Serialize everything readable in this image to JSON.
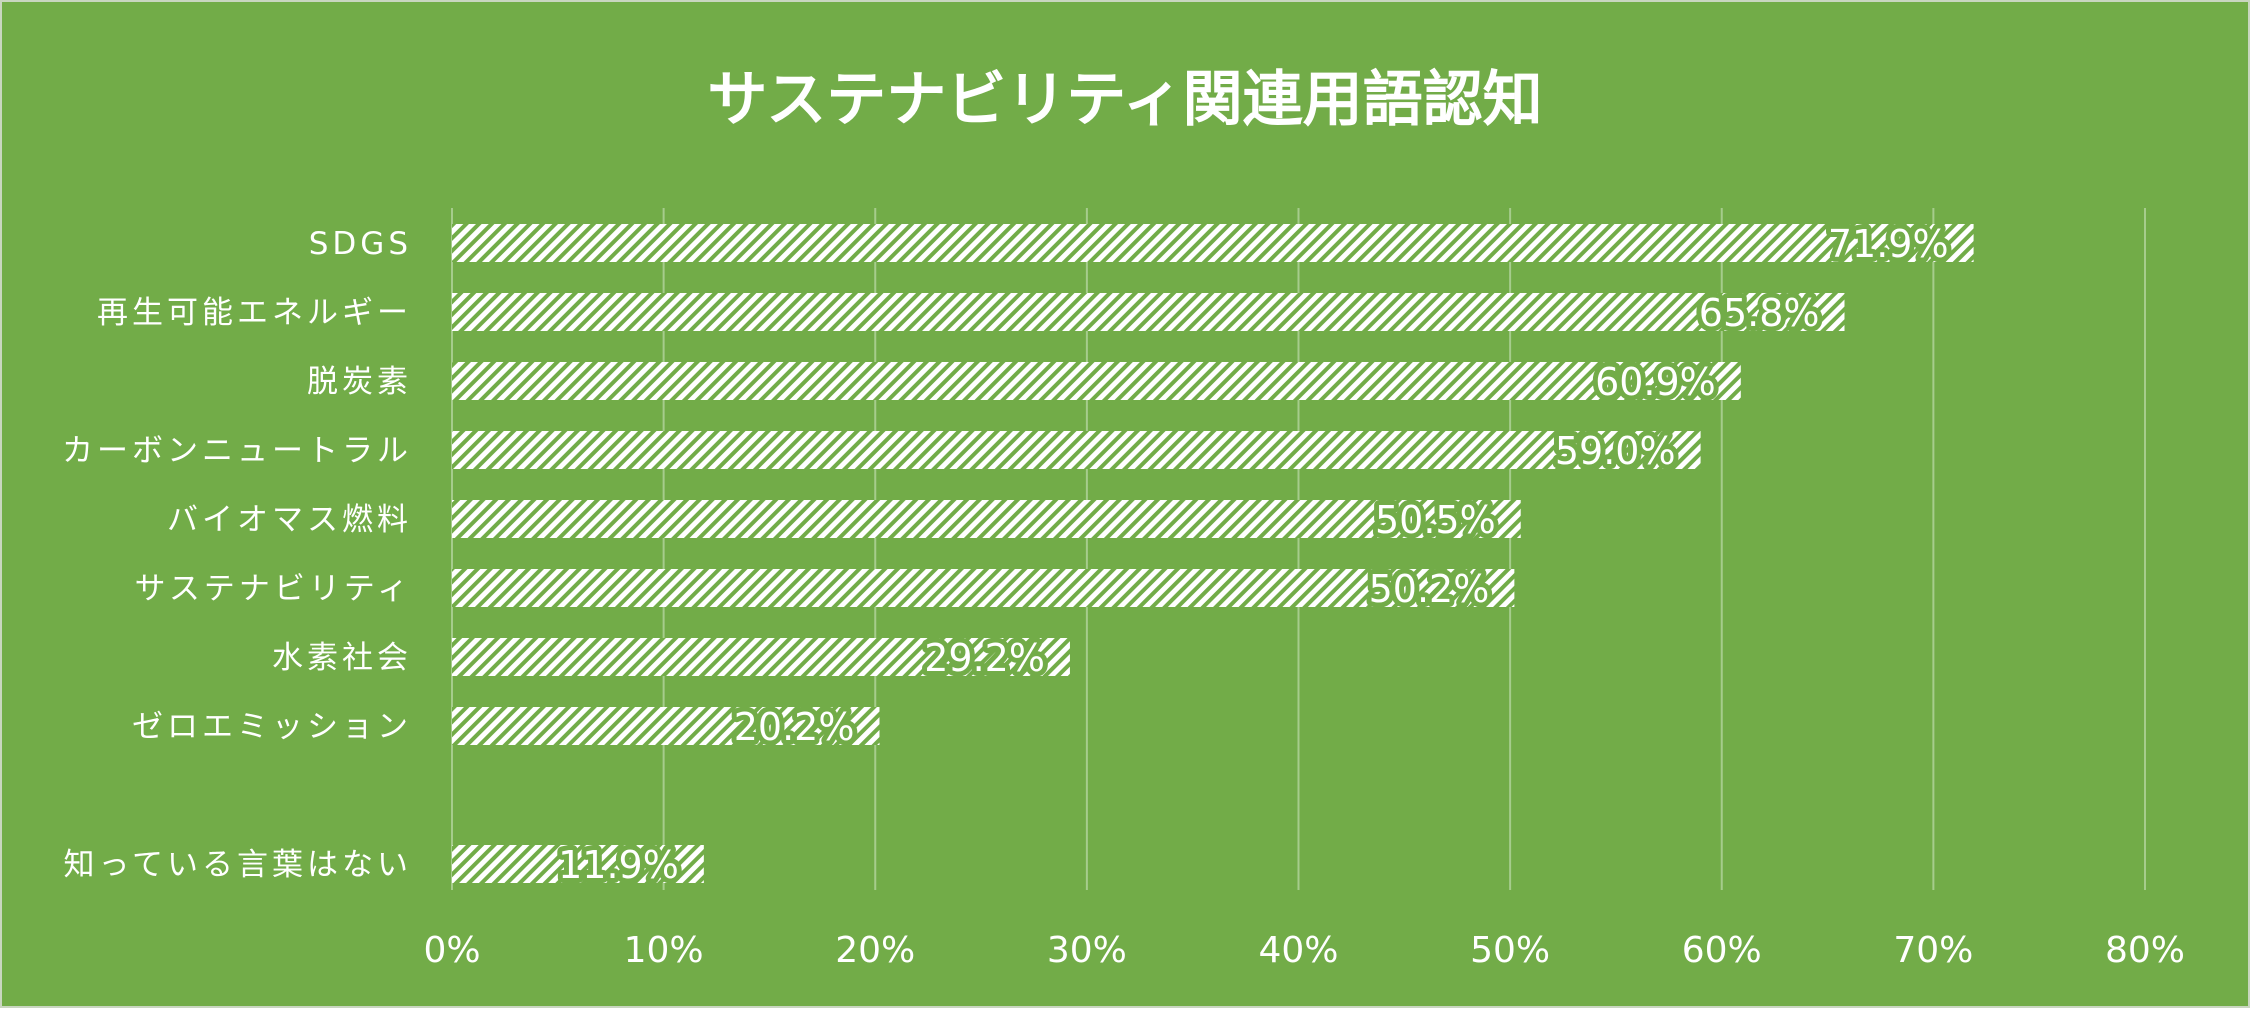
{
  "chart_data": {
    "type": "bar",
    "orientation": "horizontal",
    "title": "サステナビリティ関連用語認知",
    "xlabel": "",
    "ylabel": "",
    "xlim": [
      0,
      80
    ],
    "x_ticks": [
      "0%",
      "10%",
      "20%",
      "30%",
      "40%",
      "50%",
      "60%",
      "70%",
      "80%"
    ],
    "grid": true,
    "legend": "none",
    "categories": [
      "SDGS",
      "再生可能エネルギー",
      "脱炭素",
      "カーボンニュートラル",
      "バイオマス燃料",
      "サステナビリティ",
      "水素社会",
      "ゼロエミッション",
      "知っている言葉はない"
    ],
    "values": [
      71.9,
      65.8,
      60.9,
      59.0,
      50.5,
      50.2,
      29.2,
      20.2,
      11.9
    ],
    "value_labels": [
      "71.9%",
      "65.8%",
      "60.9%",
      "59.0%",
      "50.5%",
      "50.2%",
      "29.2%",
      "20.2%",
      "11.9%"
    ],
    "colors": {
      "background": "#72AC48",
      "bar_stripe": "#72AC48",
      "bar_fill": "#ffffff",
      "gridline": "#A6CC8C",
      "text": "#ffffff"
    }
  }
}
